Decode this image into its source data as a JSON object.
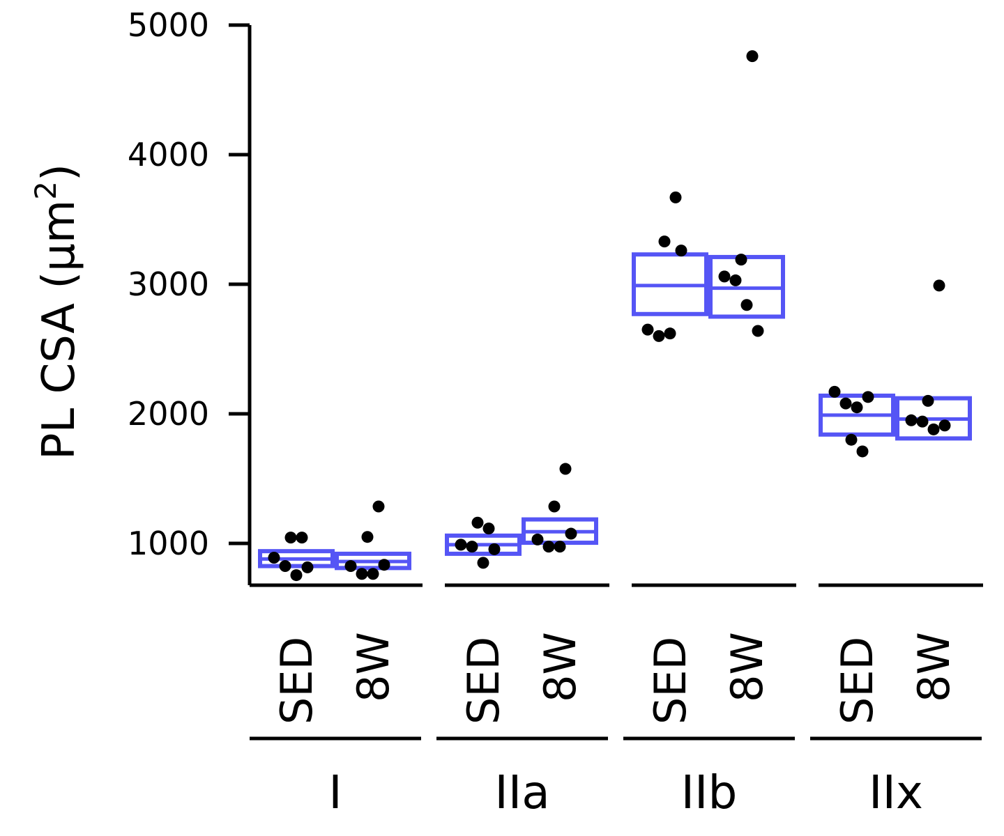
{
  "chart_data": {
    "type": "box",
    "ylabel": "PL CSA (μm²)",
    "ylabel_main": "PL CSA (μm",
    "ylabel_sup": "2",
    "ylabel_close": ")",
    "xlabel": "",
    "ylim": [
      680,
      5000
    ],
    "yticks": [
      1000,
      2000,
      3000,
      4000,
      5000
    ],
    "ytick_labels": [
      "1000",
      "2000",
      "3000",
      "4000",
      "5000"
    ],
    "grid": false,
    "legend": "none",
    "box_color": "#5555f5",
    "point_color": "#000000",
    "groups": [
      {
        "label": "I",
        "conditions": [
          {
            "label": "SED",
            "box": {
              "low": 825,
              "median": 880,
              "high": 940
            },
            "points": [
              890,
              825,
              755,
              815,
              1045,
              1045
            ]
          },
          {
            "label": "8W",
            "box": {
              "low": 810,
              "median": 860,
              "high": 920
            },
            "points": [
              825,
              765,
              765,
              835,
              1050,
              1285
            ]
          }
        ]
      },
      {
        "label": "IIa",
        "conditions": [
          {
            "label": "SED",
            "box": {
              "low": 920,
              "median": 990,
              "high": 1060
            },
            "points": [
              990,
              975,
              850,
              955,
              1160,
              1115
            ]
          },
          {
            "label": "8W",
            "box": {
              "low": 1005,
              "median": 1090,
              "high": 1185
            },
            "points": [
              1030,
              975,
              975,
              1075,
              1285,
              1575
            ]
          }
        ]
      },
      {
        "label": "IIb",
        "conditions": [
          {
            "label": "SED",
            "box": {
              "low": 2770,
              "median": 2990,
              "high": 3230
            },
            "points": [
              2650,
              2600,
              2620,
              3260,
              3330,
              3670
            ]
          },
          {
            "label": "8W",
            "box": {
              "low": 2750,
              "median": 2970,
              "high": 3210
            },
            "points": [
              3060,
              3030,
              2840,
              2640,
              3190,
              4760
            ]
          }
        ]
      },
      {
        "label": "IIx",
        "conditions": [
          {
            "label": "SED",
            "box": {
              "low": 1840,
              "median": 1990,
              "high": 2140
            },
            "points": [
              2170,
              2080,
              2050,
              2130,
              1800,
              1710
            ]
          },
          {
            "label": "8W",
            "box": {
              "low": 1810,
              "median": 1960,
              "high": 2120
            },
            "points": [
              1950,
              1940,
              1880,
              1910,
              2100,
              2990
            ]
          }
        ]
      }
    ]
  }
}
